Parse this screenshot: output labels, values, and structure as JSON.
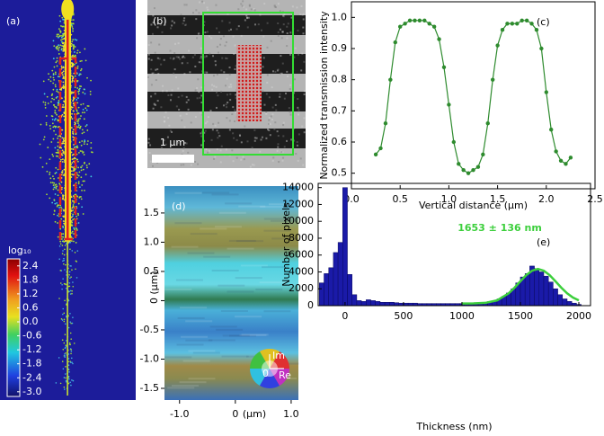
{
  "chart_data": [
    {
      "type": "image",
      "panel_label": "(a)",
      "colorbar": {
        "title": "log₁₀",
        "lim": [
          -3.2,
          2.7
        ],
        "ticks": [
          2.4,
          1.8,
          1.2,
          0.6,
          {
            "value": 0,
            "label": "0.0"
          },
          -0.6,
          -1.2,
          -1.8,
          -2.4,
          {
            "value": -3,
            "label": "-3.0"
          }
        ]
      }
    },
    {
      "type": "image",
      "panel_label": "(b)",
      "scale_bar": "1 μm"
    },
    {
      "type": "line",
      "panel_label": "(c)",
      "xlabel": "Vertical distance (μm)",
      "ylabel": "Normalized transmission intensity",
      "x": [
        0.25,
        0.3,
        0.35,
        0.4,
        0.45,
        0.5,
        0.55,
        0.6,
        0.65,
        0.7,
        0.75,
        0.8,
        0.85,
        0.9,
        0.95,
        1.0,
        1.05,
        1.1,
        1.15,
        1.2,
        1.25,
        1.3,
        1.35,
        1.4,
        1.45,
        1.5,
        1.55,
        1.6,
        1.65,
        1.7,
        1.75,
        1.8,
        1.85,
        1.9,
        1.95,
        2.0,
        2.05,
        2.1,
        2.15,
        2.2,
        2.25
      ],
      "values": [
        0.56,
        0.58,
        0.66,
        0.8,
        0.92,
        0.97,
        0.98,
        0.99,
        0.99,
        0.99,
        0.99,
        0.98,
        0.97,
        0.93,
        0.84,
        0.72,
        0.6,
        0.53,
        0.51,
        0.5,
        0.51,
        0.52,
        0.56,
        0.66,
        0.8,
        0.91,
        0.96,
        0.98,
        0.98,
        0.98,
        0.99,
        0.99,
        0.98,
        0.96,
        0.9,
        0.76,
        0.64,
        0.57,
        0.54,
        0.53,
        0.55
      ],
      "color": "#2e8b2e",
      "xlim": [
        0,
        2.5
      ],
      "xticks": [
        {
          "value": 0,
          "label": "0.0"
        },
        0.5,
        {
          "value": 1,
          "label": "1.0"
        },
        1.5,
        {
          "value": 2,
          "label": "2.0"
        },
        2.5
      ],
      "ylim": [
        0.45,
        1.05
      ],
      "yticks": [
        0.5,
        0.6,
        0.7,
        0.8,
        0.9,
        {
          "value": 1,
          "label": "1.0"
        }
      ]
    },
    {
      "type": "image",
      "panel_label": "(d)",
      "xlabel": "(μm)",
      "ylabel": "(μm)",
      "xlim": [
        -1.27,
        1.13
      ],
      "xticks": [
        {
          "value": -1,
          "label": "-1.0"
        },
        0,
        {
          "value": 1,
          "label": "1.0"
        }
      ],
      "ylim": [
        -1.7,
        1.96
      ],
      "yticks": [
        1.5,
        {
          "value": 1,
          "label": "1.0"
        },
        0.5,
        0,
        -0.5,
        {
          "value": -1,
          "label": "-1.0"
        },
        -1.5
      ],
      "wheel_labels": [
        "Im",
        "Re",
        "0"
      ]
    },
    {
      "type": "histogram",
      "panel_label": "(e)",
      "xlabel": "Thickness (nm)",
      "ylabel": "Number of pixels",
      "annotation": "1653 ± 136 nm",
      "bins": [
        -220,
        -180,
        -140,
        -100,
        -60,
        -20,
        20,
        60,
        100,
        140,
        180,
        220,
        260,
        300,
        340,
        380,
        420,
        460,
        500,
        540,
        580,
        620,
        660,
        700,
        740,
        780,
        820,
        860,
        900,
        940,
        980,
        1020,
        1060,
        1100,
        1140,
        1180,
        1220,
        1260,
        1300,
        1340,
        1380,
        1420,
        1460,
        1500,
        1540,
        1580,
        1620,
        1660,
        1700,
        1740,
        1780,
        1820,
        1860,
        1900,
        1940,
        1980,
        2020
      ],
      "values": [
        2700,
        3800,
        4500,
        6300,
        7500,
        14000,
        3700,
        1300,
        600,
        500,
        700,
        600,
        500,
        400,
        400,
        400,
        350,
        300,
        300,
        300,
        300,
        250,
        250,
        250,
        250,
        250,
        250,
        250,
        250,
        250,
        250,
        300,
        300,
        350,
        400,
        400,
        500,
        600,
        800,
        1100,
        1500,
        2000,
        2700,
        3400,
        3800,
        4700,
        4400,
        4000,
        3500,
        2800,
        2000,
        1300,
        800,
        500,
        300,
        150
      ],
      "color": "#1a1aa8",
      "fit": {
        "x": [
          1000,
          1100,
          1200,
          1300,
          1400,
          1450,
          1500,
          1550,
          1600,
          1650,
          1700,
          1750,
          1800,
          1850,
          1900,
          1950,
          2000
        ],
        "values": [
          250,
          261,
          328,
          625,
          1460,
          2130,
          2890,
          3620,
          4150,
          4350,
          4150,
          3620,
          2890,
          2130,
          1460,
          956,
          625
        ],
        "color": "#3ccf3c"
      },
      "xlim": [
        -230,
        2100
      ],
      "xticks": [
        0,
        500,
        1000,
        1500,
        2000
      ],
      "ylim": [
        0,
        14500
      ],
      "yticks": [
        0,
        2000,
        4000,
        6000,
        8000,
        10000,
        12000,
        14000
      ]
    }
  ]
}
